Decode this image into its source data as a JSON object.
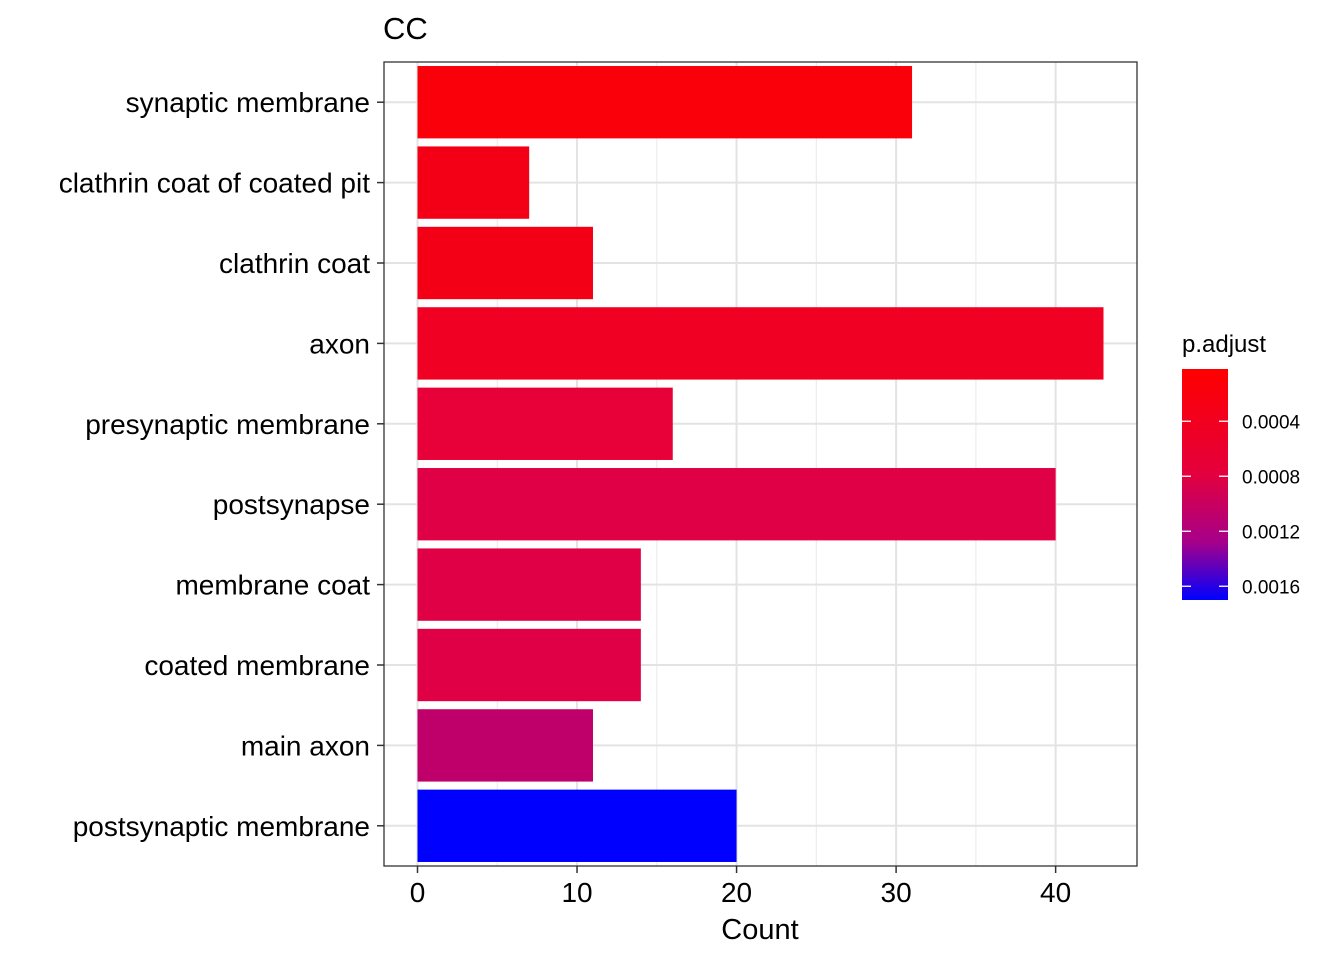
{
  "chart_data": {
    "type": "bar",
    "orientation": "horizontal",
    "title": "CC",
    "xlabel": "Count",
    "ylabel": "",
    "xlim": [
      -2.1,
      45.1
    ],
    "x_ticks": [
      0,
      10,
      20,
      30,
      40
    ],
    "categories": [
      "synaptic membrane",
      "clathrin coat of coated pit",
      "clathrin coat",
      "axon",
      "presynaptic membrane",
      "postsynapse",
      "membrane coat",
      "coated membrane",
      "main axon",
      "postsynaptic membrane"
    ],
    "values": [
      31,
      7,
      11,
      43,
      16,
      40,
      14,
      14,
      11,
      20
    ],
    "colors": [
      "#f9000a",
      "#f30017",
      "#f30017",
      "#f00022",
      "#e80038",
      "#e00045",
      "#e00045",
      "#e00045",
      "#c0006a",
      "#0000ff"
    ],
    "p_adjust": [
      2e-05,
      0.0001,
      0.0001,
      0.00015,
      0.0003,
      0.0004,
      0.0004,
      0.0004,
      0.0009,
      0.0017
    ],
    "grid": true,
    "legend": {
      "title": "p.adjust",
      "position": "right",
      "type": "colorbar",
      "low_color": "#ff0000",
      "high_color": "#0000ff",
      "ticks": [
        0.0004,
        0.0008,
        0.0012,
        0.0016
      ],
      "tick_labels": [
        "0.0004",
        "0.0008",
        "0.0012",
        "0.0016"
      ],
      "range": [
        2e-05,
        0.0017
      ]
    }
  }
}
